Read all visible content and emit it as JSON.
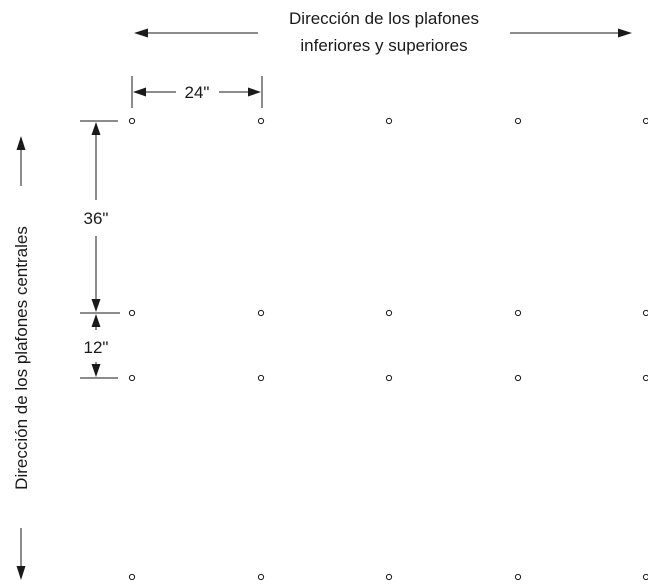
{
  "labels": {
    "top_direction_line1": "Dirección de los plafones",
    "top_direction_line2": "inferiores y superiores",
    "side_direction": "Dirección de los plafones centrales",
    "dim_horizontal": "24\"",
    "dim_36": "36\"",
    "dim_12": "12\""
  },
  "grid": {
    "columns": 5,
    "rows": 4
  },
  "colors": {
    "ink": "#1a1a1a",
    "background": "#ffffff"
  }
}
